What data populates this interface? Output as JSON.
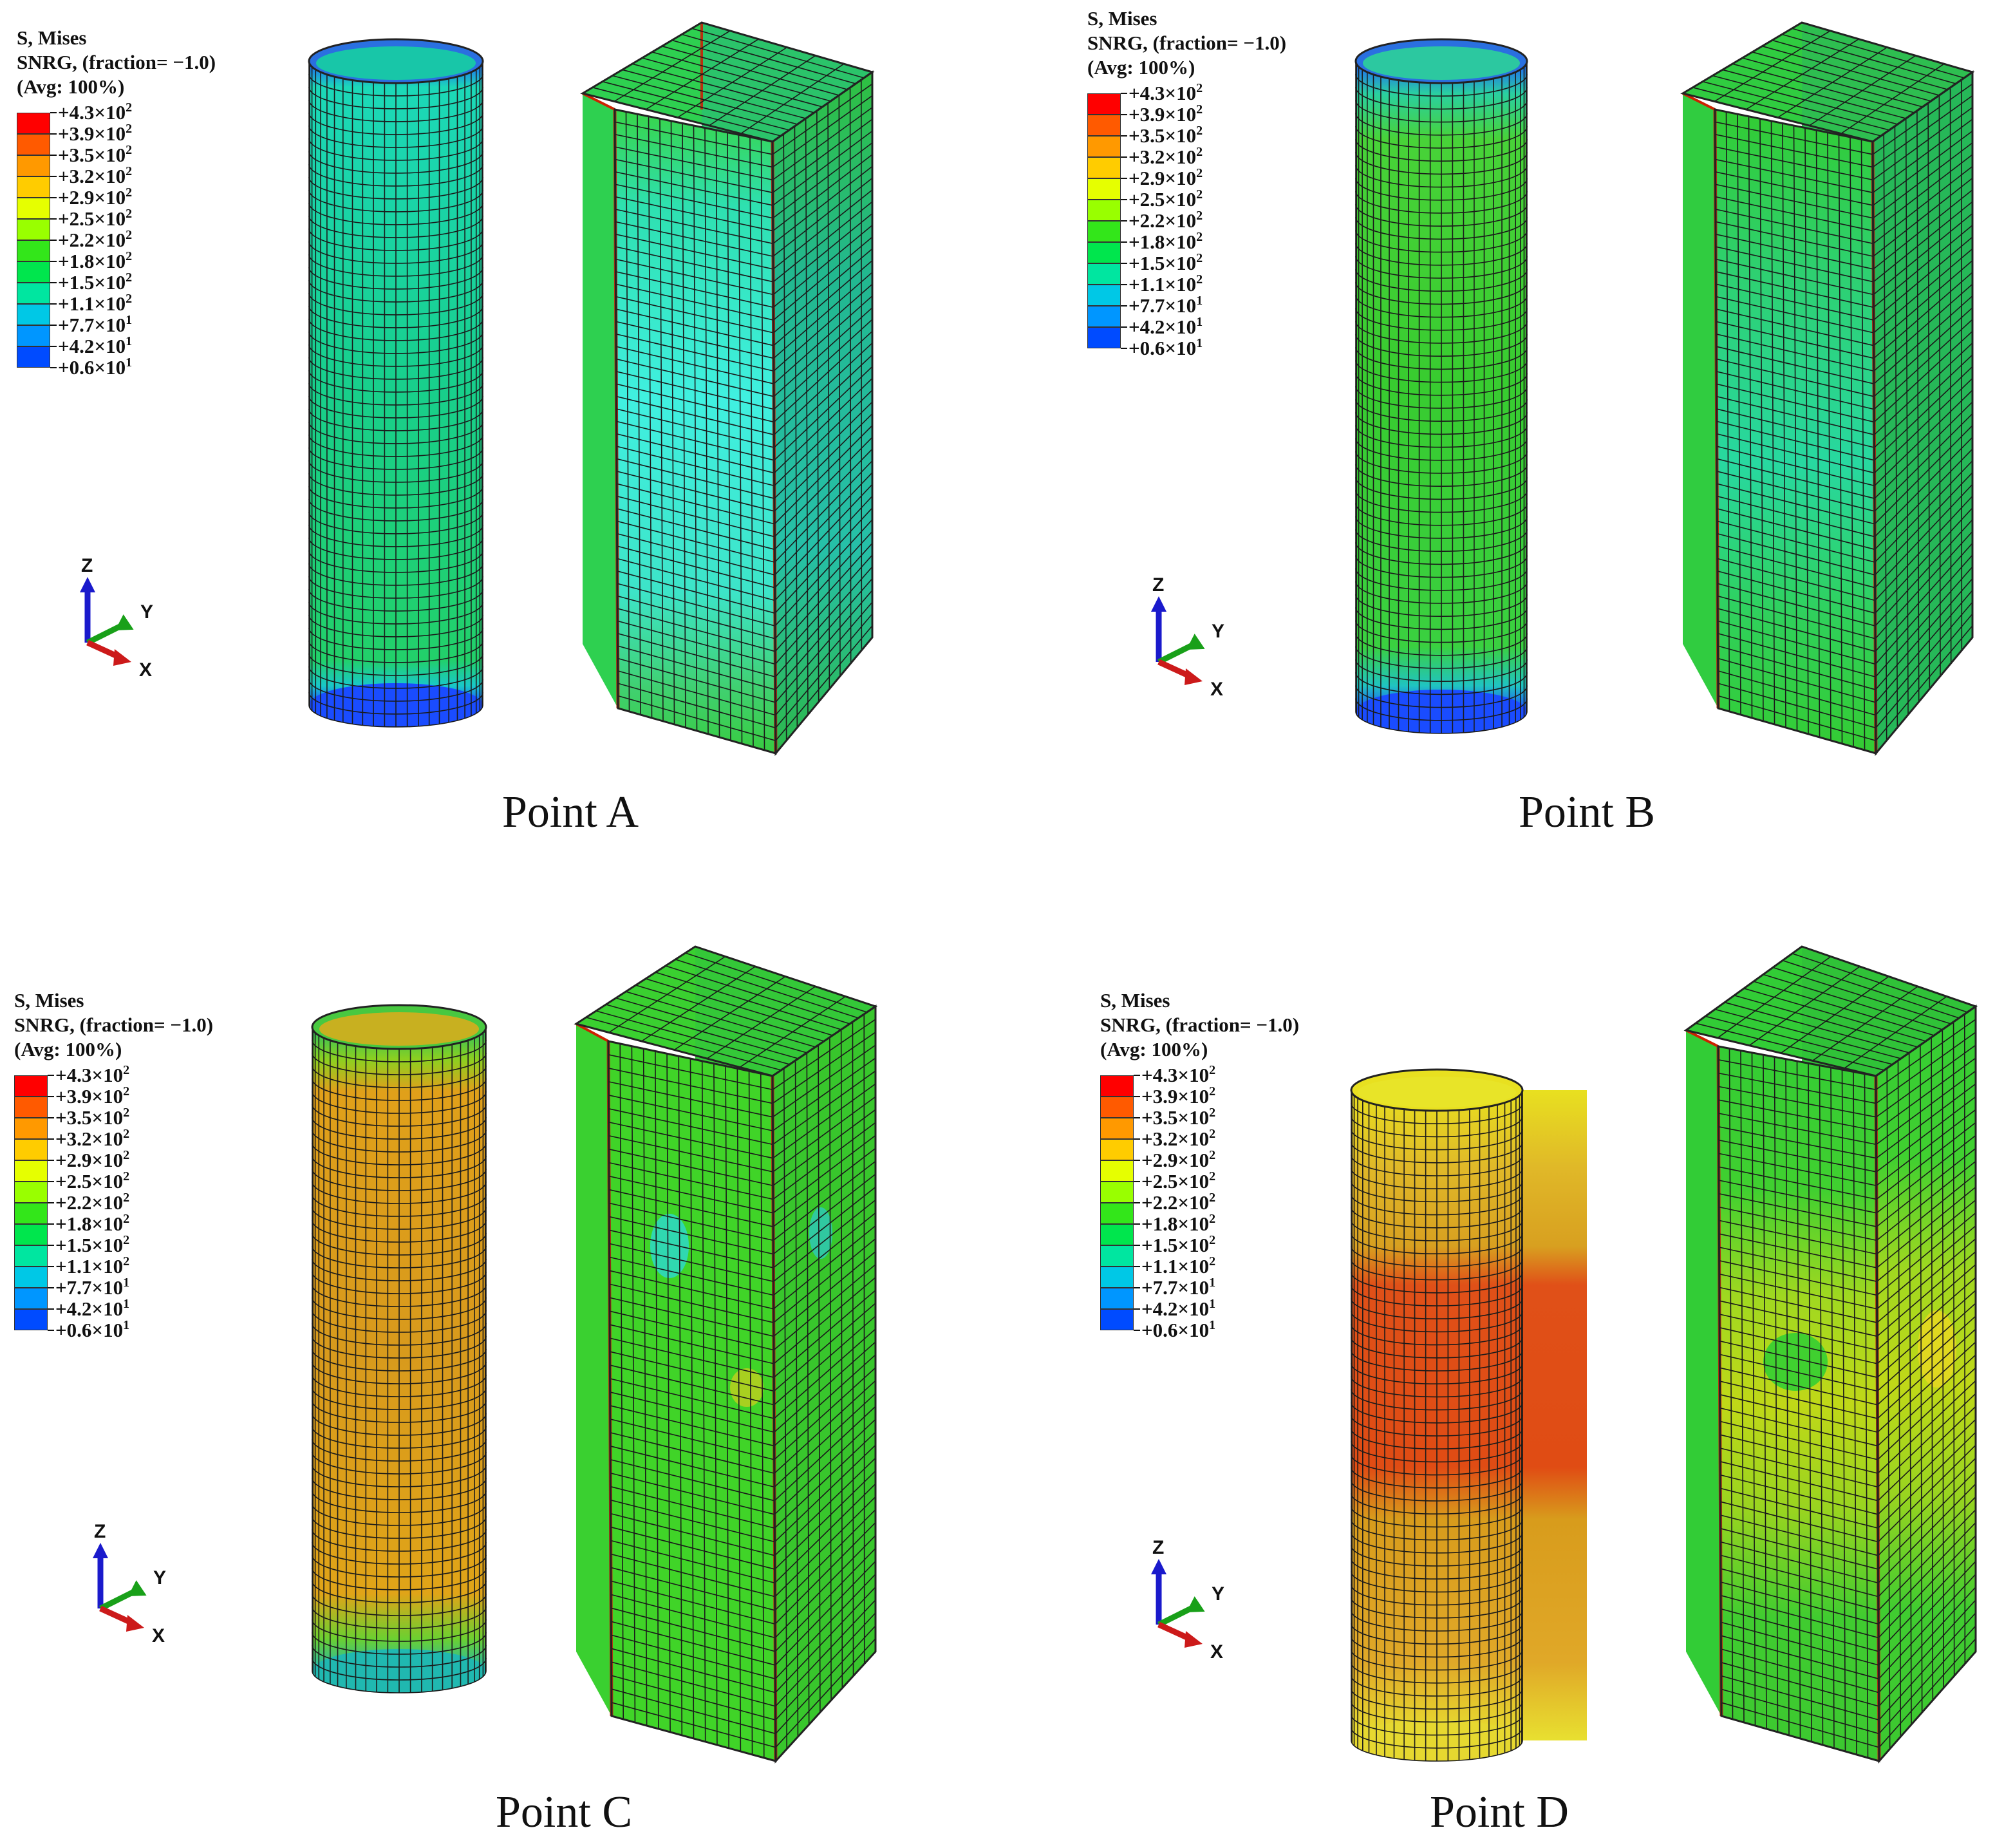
{
  "figure": {
    "panels": [
      {
        "id": "A",
        "caption": "Point A",
        "legend": {
          "title_line1": "S, Mises",
          "title_line2": "SNRG, (fraction= −1.0)",
          "title_line3": "(Avg: 100%)"
        },
        "triad": {
          "z": "Z",
          "y": "Y",
          "x": "X"
        },
        "contour": {
          "circular_tube": "cyan-green body, blue end rings",
          "square_tube": "green with large cyan zones"
        }
      },
      {
        "id": "B",
        "caption": "Point B",
        "legend": {
          "title_line1": "S, Mises",
          "title_line2": "SNRG, (fraction= −1.0)",
          "title_line3": "(Avg: 100%)"
        },
        "triad": {
          "z": "Z",
          "y": "Y",
          "x": "X"
        },
        "contour": {
          "circular_tube": "green body, blue end rings",
          "square_tube": "green with cyan-green zones"
        }
      },
      {
        "id": "C",
        "caption": "Point C",
        "legend": {
          "title_line1": "S, Mises",
          "title_line2": "SNRG, (fraction= −1.0)",
          "title_line3": "(Avg: 100%)"
        },
        "triad": {
          "z": "Z",
          "y": "Y",
          "x": "X"
        },
        "contour": {
          "circular_tube": "orange body, green ends",
          "square_tube": "green"
        }
      },
      {
        "id": "D",
        "caption": "Point D",
        "legend": {
          "title_line1": "S, Mises",
          "title_line2": "SNRG, (fraction= −1.0)",
          "title_line3": "(Avg: 100%)"
        },
        "triad": {
          "z": "Z",
          "y": "Y",
          "x": "X"
        },
        "contour": {
          "circular_tube": "red-orange middle band, yellow ends",
          "square_tube": "green with yellow zones"
        }
      }
    ],
    "legend_levels": [
      {
        "mantissa": "+4.3",
        "exponent": "2",
        "color": "#ff0000"
      },
      {
        "mantissa": "+3.9",
        "exponent": "2",
        "color": "#ff5a00"
      },
      {
        "mantissa": "+3.5",
        "exponent": "2",
        "color": "#ff9900"
      },
      {
        "mantissa": "+3.2",
        "exponent": "2",
        "color": "#ffcc00"
      },
      {
        "mantissa": "+2.9",
        "exponent": "2",
        "color": "#e6ff00"
      },
      {
        "mantissa": "+2.5",
        "exponent": "2",
        "color": "#99ff00"
      },
      {
        "mantissa": "+2.2",
        "exponent": "2",
        "color": "#33e61a"
      },
      {
        "mantissa": "+1.8",
        "exponent": "2",
        "color": "#00e64d"
      },
      {
        "mantissa": "+1.5",
        "exponent": "2",
        "color": "#00e6a0"
      },
      {
        "mantissa": "+1.1",
        "exponent": "2",
        "color": "#00c8e6"
      },
      {
        "mantissa": "+7.7",
        "exponent": "1",
        "color": "#0096ff"
      },
      {
        "mantissa": "+4.2",
        "exponent": "1",
        "color": "#004bff"
      },
      {
        "mantissa": "+0.6",
        "exponent": "1",
        "color": "#0000e6"
      }
    ],
    "legend_multiplier": "×10",
    "colors": {
      "mesh_lines": "#1a1a1a",
      "z_axis": "#1a1acc",
      "y_axis": "#19a019",
      "x_axis": "#cc1a1a"
    }
  }
}
